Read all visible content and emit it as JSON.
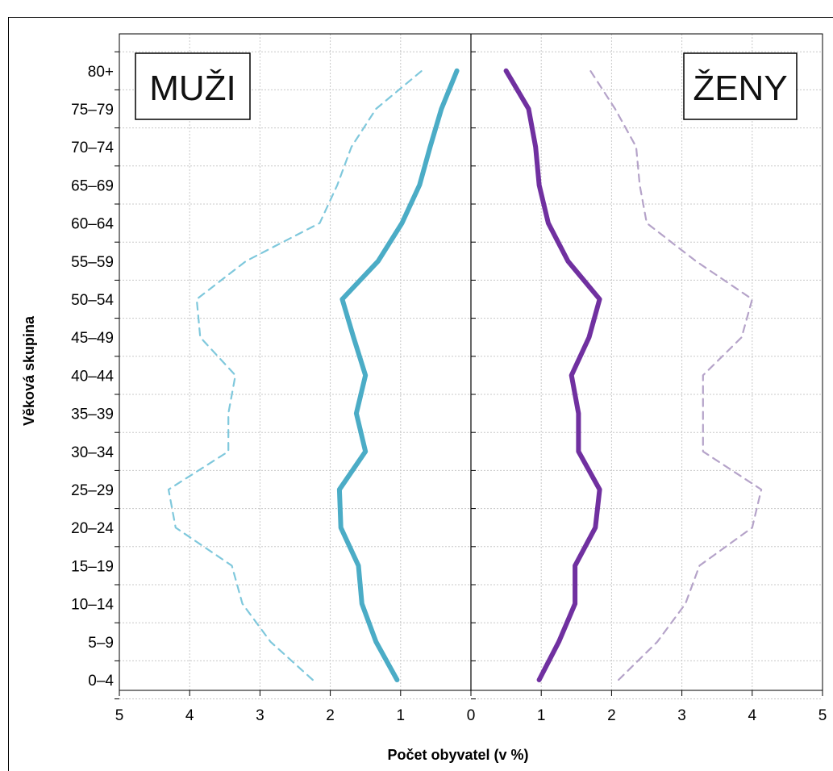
{
  "chart_data": {
    "type": "line",
    "title": "",
    "xlabel": "Počet obyvatel (v  %)",
    "ylabel": "Věková skupina",
    "categories": [
      "0–4",
      "5–9",
      "10–14",
      "15–19",
      "20–24",
      "25–29",
      "30–34",
      "35–39",
      "40–44",
      "45–49",
      "50–54",
      "55–59",
      "60–64",
      "65–69",
      "70–74",
      "75–79",
      "80+"
    ],
    "x_ticks": [
      "5",
      "4",
      "3",
      "2",
      "1",
      "0",
      "1",
      "2",
      "3",
      "4",
      "5"
    ],
    "xlim": [
      -5,
      5
    ],
    "grid": true,
    "panel_labels": {
      "left": "MUŽI",
      "right": "ŽENY"
    },
    "colors": {
      "men_solid": "#4bacc6",
      "men_dashed": "#7fc8dc",
      "women_solid": "#7030a0",
      "women_dashed": "#b5a3c9"
    },
    "series": [
      {
        "side": "men",
        "style": "solid",
        "values": [
          1.05,
          1.35,
          1.55,
          1.6,
          1.85,
          1.87,
          1.5,
          1.63,
          1.5,
          1.67,
          1.83,
          1.32,
          0.98,
          0.73,
          0.58,
          0.42,
          0.2
        ]
      },
      {
        "side": "men",
        "style": "dashed",
        "values": [
          2.25,
          2.85,
          3.25,
          3.4,
          4.2,
          4.3,
          3.45,
          3.45,
          3.35,
          3.85,
          3.9,
          3.2,
          2.15,
          1.9,
          1.7,
          1.35,
          0.7
        ]
      },
      {
        "side": "women",
        "style": "solid",
        "values": [
          0.97,
          1.25,
          1.48,
          1.48,
          1.77,
          1.83,
          1.53,
          1.53,
          1.43,
          1.68,
          1.83,
          1.38,
          1.1,
          0.97,
          0.92,
          0.82,
          0.5
        ]
      },
      {
        "side": "women",
        "style": "dashed",
        "values": [
          2.1,
          2.65,
          3.05,
          3.25,
          4.0,
          4.13,
          3.3,
          3.3,
          3.3,
          3.85,
          4.0,
          3.2,
          2.5,
          2.4,
          2.35,
          2.05,
          1.7
        ]
      }
    ]
  }
}
